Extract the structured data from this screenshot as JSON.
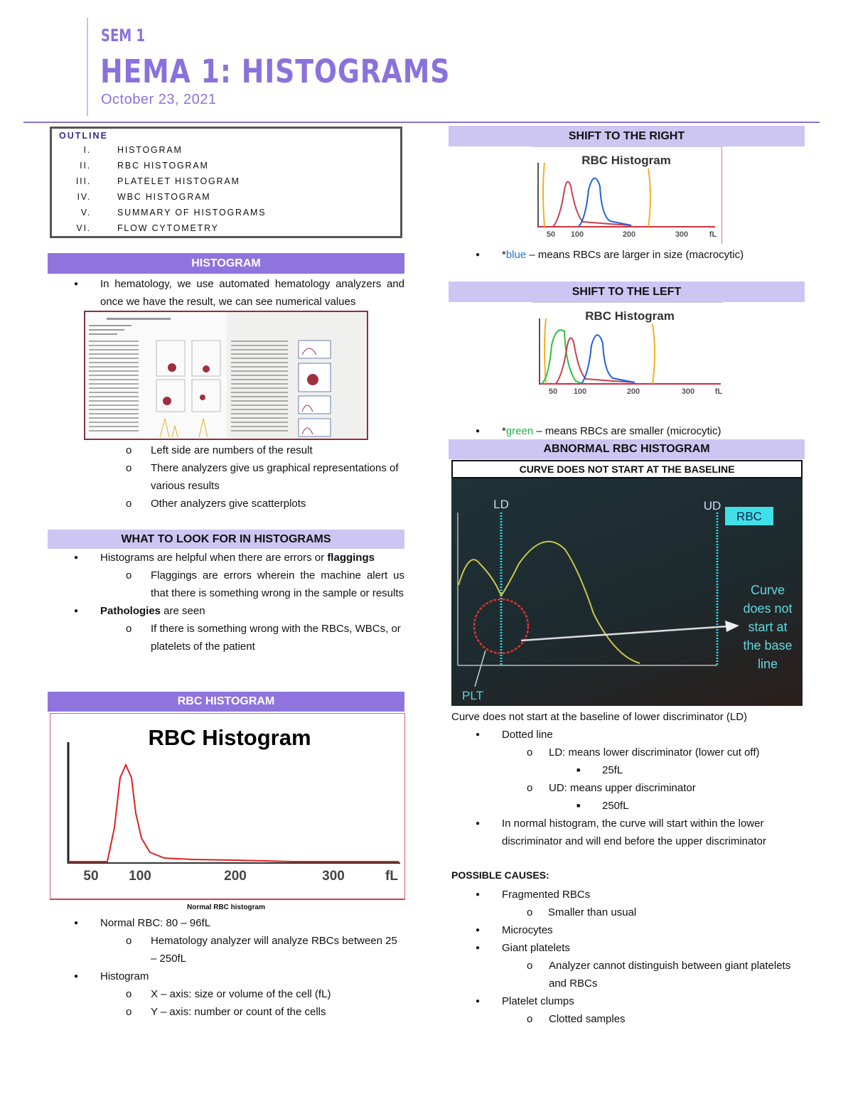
{
  "header": {
    "sem": "SEM 1",
    "title": "HEMA 1: HISTOGRAMS",
    "date": "October 23, 2021"
  },
  "outline": {
    "heading": "OUTLINE",
    "items": [
      {
        "num": "I.",
        "label": "HISTOGRAM"
      },
      {
        "num": "II.",
        "label": "RBC HISTOGRAM"
      },
      {
        "num": "III.",
        "label": "PLATELET HISTOGRAM"
      },
      {
        "num": "IV.",
        "label": "WBC HISTOGRAM"
      },
      {
        "num": "V.",
        "label": "SUMMARY OF HISTOGRAMS"
      },
      {
        "num": "VI.",
        "label": "FLOW CYTOMETRY"
      }
    ]
  },
  "histogram": {
    "heading": "HISTOGRAM",
    "bullet": "In hematology, we use automated hematology analyzers and once we have the result, we can see numerical values",
    "subs": [
      "Left side are numbers of the result",
      "There analyzers give us graphical representations of various results",
      "Other analyzers give scatterplots"
    ]
  },
  "look_for": {
    "heading": "WHAT TO LOOK FOR IN HISTOGRAMS",
    "b1": "Histograms are helpful when there are errors or ",
    "b1_bold": "flaggings",
    "b1_sub": "Flaggings are errors wherein the machine alert us that there is something wrong in the sample or results",
    "b2_bold": "Pathologies",
    "b2": " are seen",
    "b2_sub": "If there is something wrong with the RBCs, WBCs, or platelets of the patient"
  },
  "rbc": {
    "heading": "RBC HISTOGRAM",
    "figure_title": "RBC Histogram",
    "ticks": [
      "50",
      "100",
      "200",
      "300",
      "fL"
    ],
    "caption": "Normal RBC histogram",
    "b1": "Normal RBC: 80 – 96fL",
    "b1_sub": "Hematology analyzer will analyze RBCs between 25 – 250fL",
    "b2": "Histogram",
    "b2_subs": [
      "X – axis: size or volume of the cell (fL)",
      "Y – axis: number or count of the cells"
    ]
  },
  "shift_right": {
    "heading": "SHIFT TO THE RIGHT",
    "figure_title": "RBC Histogram",
    "ticks": [
      "50",
      "100",
      "200",
      "300",
      "fL"
    ],
    "note_prefix": "*",
    "note_color_word": "blue",
    "note_rest": " – means RBCs are larger in size (macrocytic)",
    "color": "#1f6fd6"
  },
  "shift_left": {
    "heading": "SHIFT TO THE LEFT",
    "figure_title": "RBC Histogram",
    "ticks": [
      "50",
      "100",
      "200",
      "300",
      "fL"
    ],
    "note_prefix": "*",
    "note_color_word": "green",
    "note_rest": " – means RBCs are smaller (microcytic)",
    "color": "#22b14c"
  },
  "abnormal": {
    "heading": "ABNORMAL RBC HISTOGRAM",
    "subheading": "CURVE DOES NOT START AT THE BASELINE",
    "figure": {
      "ld": "LD",
      "ud": "UD",
      "rbc": "RBC",
      "plt": "PLT",
      "callout": [
        "Curve",
        "does not",
        "start at",
        "the base",
        "line"
      ]
    },
    "caption": "Curve does not start at the baseline of lower discriminator (LD)",
    "b1": "Dotted line",
    "ld_def": "LD: means lower discriminator (lower cut off)",
    "ld_val": "25fL",
    "ud_def": "UD: means upper discriminator",
    "ud_val": "250fL",
    "b2": "In normal histogram, the curve will start within the lower discriminator and will end before the upper discriminator"
  },
  "causes": {
    "heading": "POSSIBLE CAUSES:",
    "items": [
      "Fragmented RBCs",
      "Microcytes",
      "Giant platelets",
      "Platelet clumps"
    ],
    "fragmented_sub": "Smaller than usual",
    "giant_sub": "Analyzer cannot distinguish between giant platelets and RBCs",
    "clumps_sub": "Clotted samples"
  },
  "colors": {
    "accent": "#8a72dc",
    "header_light": "#cdc5f2",
    "header_dark": "#8f74de"
  }
}
